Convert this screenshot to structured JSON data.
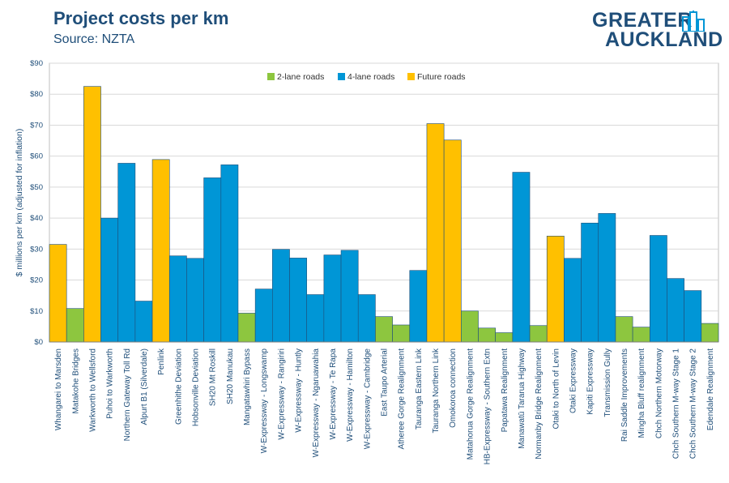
{
  "header": {
    "title": "Project costs per km",
    "subtitle": "Source: NZTA"
  },
  "logo": {
    "line1": "GREATER",
    "line2": "AUCKLAND",
    "icon": "city-skyline-icon"
  },
  "colors": {
    "2-lane roads": "#8dc63f",
    "4-lane roads": "#0096d6",
    "Future roads": "#ffc000",
    "axis_text": "#1f4e79",
    "grid": "#d9d9d9"
  },
  "chart_data": {
    "type": "bar",
    "ylabel": "$ millions per km (adjusted for inflation)",
    "xlabel": "",
    "ylim": [
      0,
      90
    ],
    "yticks": [
      "$0",
      "$10",
      "$20",
      "$30",
      "$40",
      "$50",
      "$60",
      "$70",
      "$80",
      "$90"
    ],
    "grid": true,
    "legend": {
      "placement": "top-center",
      "entries": [
        "2-lane roads",
        "4-lane roads",
        "Future roads"
      ]
    },
    "categories": [
      "Whangarei to Marsden",
      "Matakohe Bridges",
      "Warkworth to Wellsford",
      "Puhoi to Warkworth",
      "Northern Gateway Toll Rd",
      "Alpurt B1 (Silverdale)",
      "Penlink",
      "Greenhithe Deviation",
      "Hobsonville Deviation",
      "SH20 Mt Roskill",
      "SH20 Manukau",
      "Mangatawhiri Bypass",
      "W-Expressway - Longswamp",
      "W-Expressway - Rangiriri",
      "W-Expressway - Huntly",
      "W-Expressway - Ngaruawahia",
      "W-Expressway - Te Rapa",
      "W-Expressway - Hamilton",
      "W-Expressway - Cambridge",
      "East Taupo Arterial",
      "Atheree Gorge Realignment",
      "Tauranga Eastern Link",
      "Tauranga Northern Link",
      "Omokoroa connection",
      "Matahorua Gorge Realignment",
      "HB-Expressway - Southern Extn",
      "Papatawa Realignment",
      "Manawatū Tararua Highway",
      "Normanby Bridge Realignment",
      "Otaki to North of Levin",
      "Otaki Expressway",
      "Kapiti Expressway",
      "Transmission Gully",
      "Rai Saddle Improvements",
      "Mingha Bluff realignment",
      "Chch Northern Motorway",
      "Chch Southern M-way Stage 1",
      "Chch Southern M-way Stage 2",
      "Edendale Realignment"
    ],
    "values": [
      31.5,
      10.8,
      82.5,
      40.0,
      57.7,
      13.2,
      58.9,
      27.8,
      27.0,
      53.0,
      57.2,
      9.3,
      17.1,
      29.9,
      27.1,
      15.3,
      28.1,
      29.6,
      15.3,
      8.2,
      5.5,
      23.1,
      70.5,
      65.2,
      10.0,
      4.5,
      3.0,
      54.8,
      5.3,
      34.2,
      27.0,
      38.4,
      41.5,
      8.2,
      4.8,
      34.4,
      20.5,
      16.6,
      6.0
    ],
    "groups": [
      "Future roads",
      "2-lane roads",
      "Future roads",
      "4-lane roads",
      "4-lane roads",
      "4-lane roads",
      "Future roads",
      "4-lane roads",
      "4-lane roads",
      "4-lane roads",
      "4-lane roads",
      "2-lane roads",
      "4-lane roads",
      "4-lane roads",
      "4-lane roads",
      "4-lane roads",
      "4-lane roads",
      "4-lane roads",
      "4-lane roads",
      "2-lane roads",
      "2-lane roads",
      "4-lane roads",
      "Future roads",
      "Future roads",
      "2-lane roads",
      "2-lane roads",
      "2-lane roads",
      "4-lane roads",
      "2-lane roads",
      "Future roads",
      "4-lane roads",
      "4-lane roads",
      "4-lane roads",
      "2-lane roads",
      "2-lane roads",
      "4-lane roads",
      "4-lane roads",
      "4-lane roads",
      "2-lane roads"
    ]
  }
}
